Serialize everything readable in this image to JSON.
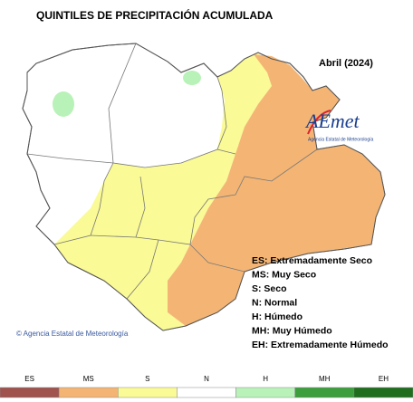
{
  "title": "QUINTILES DE PRECIPITACIÓN ACUMULADA",
  "period": "Abril (2024)",
  "logo": {
    "text": "AEmet",
    "subtitle": "Agencia Estatal de Meteorología"
  },
  "legend": [
    "ES: Extremadamente Seco",
    "MS: Muy Seco",
    "S: Seco",
    "N: Normal",
    "H: Húmedo",
    "MH: Muy Húmedo",
    "EH: Extremadamente Húmedo"
  ],
  "copyright": "© Agencia Estatal de Meteorología",
  "scale": [
    {
      "label": "ES",
      "color": "#a0524d"
    },
    {
      "label": "MS",
      "color": "#f4b574"
    },
    {
      "label": "S",
      "color": "#fafa96"
    },
    {
      "label": "N",
      "color": "#ffffff"
    },
    {
      "label": "H",
      "color": "#b8f2b8"
    },
    {
      "label": "MH",
      "color": "#3c9e3c"
    },
    {
      "label": "EH",
      "color": "#1e6e1e"
    }
  ]
}
